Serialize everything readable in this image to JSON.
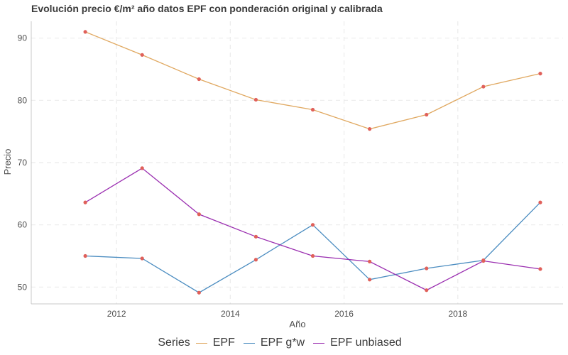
{
  "chart_data": {
    "type": "line",
    "title": "Evolución precio €/m² año datos EPF con ponderación original y calibrada",
    "xlabel": "Año",
    "ylabel": "Precio",
    "x": [
      2011.45,
      2012.45,
      2013.45,
      2014.45,
      2015.45,
      2016.45,
      2017.45,
      2018.45,
      2019.45
    ],
    "xlim": [
      2010.5,
      2019.85
    ],
    "ylim": [
      47.3,
      92.7
    ],
    "xticks": [
      2012,
      2014,
      2016,
      2018
    ],
    "yticks": [
      50,
      60,
      70,
      80,
      90
    ],
    "grid": true,
    "legend_position": "bottom",
    "legend_title": "Series",
    "point_color": "#e0605a",
    "series": [
      {
        "name": "EPF",
        "color": "#e0a860",
        "values": [
          91.0,
          87.3,
          83.4,
          80.1,
          78.5,
          75.4,
          77.7,
          82.2,
          84.3
        ]
      },
      {
        "name": "EPF g*w",
        "color": "#4a8cc0",
        "values": [
          55.0,
          54.6,
          49.1,
          54.4,
          60.0,
          51.2,
          53.0,
          54.3,
          63.6
        ]
      },
      {
        "name": "EPF unbiased",
        "color": "#9a2eb0",
        "values": [
          63.6,
          69.1,
          61.7,
          58.1,
          55.0,
          54.1,
          49.5,
          54.2,
          52.9
        ]
      }
    ]
  }
}
